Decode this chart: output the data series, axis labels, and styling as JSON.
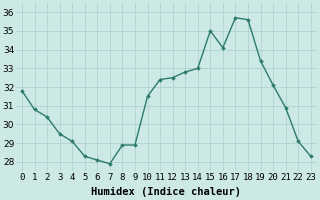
{
  "x": [
    0,
    1,
    2,
    3,
    4,
    5,
    6,
    7,
    8,
    9,
    10,
    11,
    12,
    13,
    14,
    15,
    16,
    17,
    18,
    19,
    20,
    21,
    22,
    23
  ],
  "y": [
    31.8,
    30.8,
    30.4,
    29.5,
    29.1,
    28.3,
    28.1,
    27.9,
    28.9,
    28.9,
    31.5,
    32.4,
    32.5,
    32.8,
    33.0,
    35.0,
    34.1,
    35.7,
    35.6,
    33.4,
    32.1,
    30.9,
    29.1,
    28.3
  ],
  "line_color": "#2d7a6e",
  "marker": "D",
  "marker_size": 1.8,
  "line_width": 1.0,
  "xlabel": "Humidex (Indice chaleur)",
  "xlim": [
    -0.5,
    23.5
  ],
  "ylim": [
    27.5,
    36.5
  ],
  "yticks": [
    28,
    29,
    30,
    31,
    32,
    33,
    34,
    35,
    36
  ],
  "xtick_labels": [
    "0",
    "1",
    "2",
    "3",
    "4",
    "5",
    "6",
    "7",
    "8",
    "9",
    "10",
    "11",
    "12",
    "13",
    "14",
    "15",
    "16",
    "17",
    "18",
    "19",
    "20",
    "21",
    "22",
    "23"
  ],
  "bg_color": "#cce9e5",
  "grid_color": "#aacfcb",
  "xlabel_fontsize": 7.5,
  "tick_fontsize": 6.5,
  "xlabel_fontweight": "bold"
}
